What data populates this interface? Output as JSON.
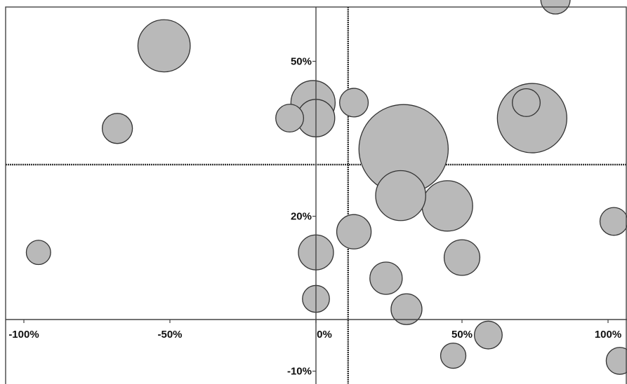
{
  "chart_data": {
    "type": "scatter",
    "subtype": "bubble",
    "title": "",
    "xlabel": "",
    "ylabel": "",
    "xlim": [
      -105,
      103
    ],
    "ylim": [
      -12,
      72
    ],
    "grid": false,
    "legend": null,
    "x_ticks": [
      {
        "value": -100,
        "label": "-100%"
      },
      {
        "value": -50,
        "label": "-50%"
      },
      {
        "value": 0,
        "label": "0%"
      },
      {
        "value": 50,
        "label": "50%"
      },
      {
        "value": 100,
        "label": "100%"
      }
    ],
    "y_ticks": [
      {
        "value": -10,
        "label": "-10%"
      },
      {
        "value": 20,
        "label": "20%"
      },
      {
        "value": 50,
        "label": "50%"
      }
    ],
    "reference_lines": {
      "x": 11,
      "y": 30
    },
    "colors": {
      "bubble_fill": "#b9b9b9",
      "bubble_stroke": "#333333",
      "reference_line": "#333333"
    },
    "points": [
      {
        "x": -52,
        "y": 53,
        "size": 6.0
      },
      {
        "x": -68,
        "y": 37,
        "size": 2.0
      },
      {
        "x": -95,
        "y": 13,
        "size": 1.3
      },
      {
        "x": -1,
        "y": 42,
        "size": 4.3
      },
      {
        "x": -9,
        "y": 39,
        "size": 1.7
      },
      {
        "x": 0,
        "y": 39,
        "size": 3.1
      },
      {
        "x": 13,
        "y": 42,
        "size": 1.8
      },
      {
        "x": 30,
        "y": 33,
        "size": 17.5
      },
      {
        "x": 74,
        "y": 39,
        "size": 10.6
      },
      {
        "x": 72,
        "y": 42,
        "size": 1.7
      },
      {
        "x": 82,
        "y": 62,
        "size": 1.9
      },
      {
        "x": 29,
        "y": 24,
        "size": 5.5
      },
      {
        "x": 45,
        "y": 22,
        "size": 5.6
      },
      {
        "x": 13,
        "y": 17,
        "size": 2.6
      },
      {
        "x": 0,
        "y": 13,
        "size": 2.7
      },
      {
        "x": 50,
        "y": 12,
        "size": 2.8
      },
      {
        "x": 102,
        "y": 19,
        "size": 1.7
      },
      {
        "x": 24,
        "y": 8,
        "size": 2.3
      },
      {
        "x": 0,
        "y": 4,
        "size": 1.6
      },
      {
        "x": 31,
        "y": 2,
        "size": 2.1
      },
      {
        "x": 59,
        "y": -3,
        "size": 1.7
      },
      {
        "x": 47,
        "y": -7,
        "size": 1.4
      },
      {
        "x": 104,
        "y": -8,
        "size": 1.6
      }
    ]
  }
}
